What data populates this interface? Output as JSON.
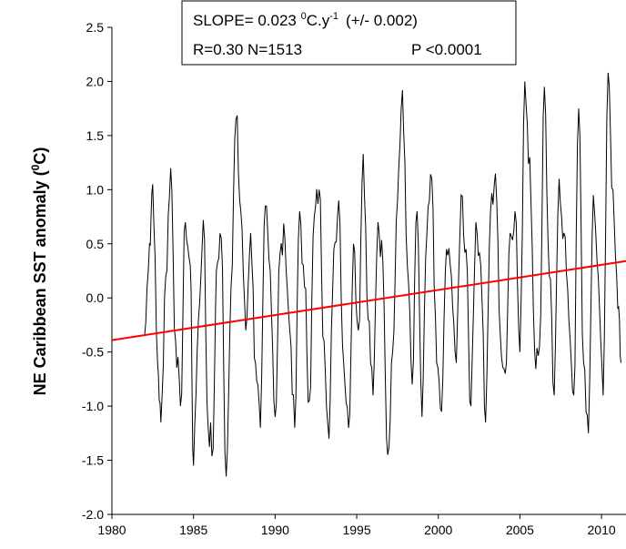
{
  "chart_data": {
    "type": "line",
    "title": "",
    "xlabel": "",
    "ylabel": "NE Caribbean SST anomaly (",
    "ylabel_sup": "0",
    "ylabel_tail": "C)",
    "xlim": [
      1980,
      2011.5
    ],
    "ylim": [
      -2.0,
      2.5
    ],
    "x_ticks": [
      1980,
      1985,
      1990,
      1995,
      2000,
      2005,
      2010
    ],
    "x_tick_labels": [
      "1980",
      "1985",
      "1990",
      "1995",
      "2000",
      "2005",
      "2010"
    ],
    "y_ticks": [
      -2.0,
      -1.5,
      -1.0,
      -0.5,
      0.0,
      0.5,
      1.0,
      1.5,
      2.0,
      2.5
    ],
    "y_tick_labels": [
      "-2.0",
      "-1.5",
      "-1.0",
      "-0.5",
      "0.0",
      "0.5",
      "1.0",
      "1.5",
      "2.0",
      "2.5"
    ],
    "grid": false,
    "series": [
      {
        "color": "#000000",
        "x_start": 1982.0,
        "x_end": 2011.2,
        "x": [
          1982.0,
          1982.3,
          1982.5,
          1982.8,
          1983.0,
          1983.3,
          1983.6,
          1983.9,
          1984.2,
          1984.5,
          1984.8,
          1985.0,
          1985.3,
          1985.6,
          1985.9,
          1986.2,
          1986.4,
          1986.7,
          1987.0,
          1987.3,
          1987.6,
          1987.9,
          1988.2,
          1988.5,
          1988.8,
          1989.1,
          1989.4,
          1989.7,
          1990.0,
          1990.3,
          1990.6,
          1990.9,
          1991.2,
          1991.5,
          1991.8,
          1992.1,
          1992.4,
          1992.7,
          1993.0,
          1993.3,
          1993.6,
          1993.9,
          1994.2,
          1994.5,
          1994.8,
          1995.1,
          1995.4,
          1995.7,
          1996.0,
          1996.3,
          1996.6,
          1996.9,
          1997.2,
          1997.5,
          1997.8,
          1998.1,
          1998.4,
          1998.7,
          1999.0,
          1999.3,
          1999.6,
          1999.9,
          2000.2,
          2000.5,
          2000.8,
          2001.1,
          2001.4,
          2001.7,
          2002.0,
          2002.3,
          2002.6,
          2002.9,
          2003.2,
          2003.5,
          2003.8,
          2004.1,
          2004.4,
          2004.7,
          2005.0,
          2005.3,
          2005.6,
          2005.9,
          2006.2,
          2006.5,
          2006.8,
          2007.1,
          2007.4,
          2007.7,
          2008.0,
          2008.3,
          2008.6,
          2008.9,
          2009.2,
          2009.5,
          2009.8,
          2010.1,
          2010.4,
          2010.7,
          2011.0,
          2011.2
        ],
        "values": [
          -0.35,
          0.5,
          1.05,
          -0.6,
          -1.15,
          0.2,
          1.2,
          -0.4,
          -1.0,
          0.7,
          0.3,
          -1.55,
          -0.2,
          0.72,
          -1.2,
          -1.4,
          0.25,
          0.55,
          -1.65,
          0.1,
          1.65,
          0.8,
          -0.3,
          0.6,
          -0.6,
          -1.2,
          0.85,
          0.25,
          -1.1,
          0.4,
          0.55,
          -0.3,
          -1.2,
          0.8,
          0.1,
          -0.95,
          0.75,
          1.0,
          -0.4,
          -1.3,
          0.45,
          0.9,
          -0.6,
          -1.2,
          0.5,
          -0.3,
          1.33,
          -0.2,
          -0.9,
          0.7,
          0.35,
          -1.45,
          -0.5,
          0.9,
          1.92,
          0.3,
          -0.8,
          0.8,
          -1.1,
          0.6,
          1.1,
          -0.6,
          -1.05,
          0.45,
          0.2,
          -0.6,
          0.95,
          0.45,
          -1.0,
          0.7,
          0.3,
          -1.15,
          0.8,
          1.15,
          -0.35,
          -0.7,
          0.6,
          0.8,
          -0.5,
          2.0,
          1.3,
          -0.5,
          -0.45,
          1.95,
          0.2,
          -0.9,
          1.1,
          0.6,
          -0.2,
          -0.9,
          1.75,
          -0.6,
          -1.25,
          0.95,
          0.2,
          -0.9,
          2.08,
          1.0,
          -0.1,
          -0.6
        ]
      },
      {
        "color": "#ff0000",
        "x": [
          1980,
          2011.5
        ],
        "values": [
          -0.39,
          0.34
        ]
      }
    ],
    "annotation": {
      "slope_prefix": "SLOPE= 0.023 ",
      "slope_sup": "0",
      "slope_unit": "C.y",
      "slope_unit_sup": "-1",
      "slope_err": "(+/- 0.002)",
      "stats_left": "R=0.30  N=1513",
      "stats_right": "P <0.0001"
    }
  }
}
